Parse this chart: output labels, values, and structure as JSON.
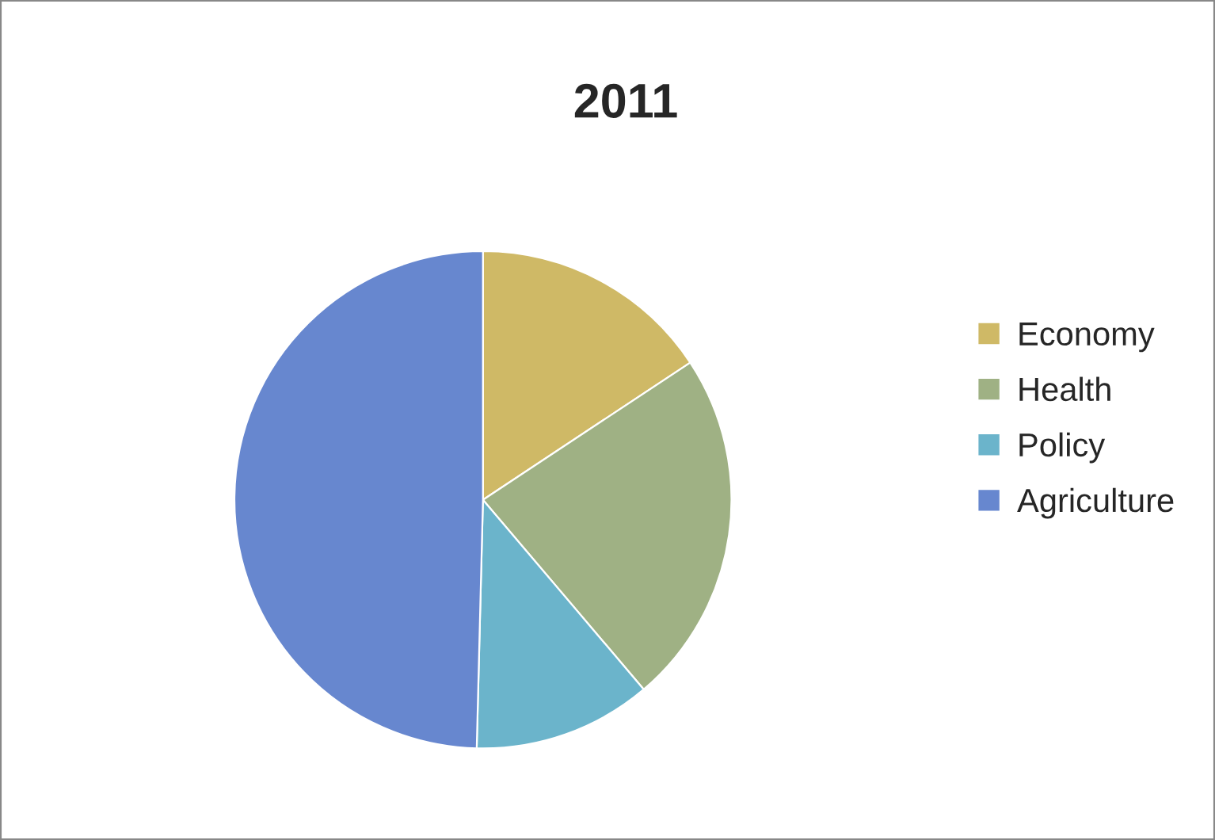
{
  "chart_data": {
    "type": "pie",
    "title": "2011",
    "categories": [
      "Economy",
      "Health",
      "Policy",
      "Agriculture"
    ],
    "values": [
      15.7,
      23.1,
      11.6,
      49.6
    ],
    "colors": [
      "#cfb966",
      "#9fb184",
      "#6bb4cb",
      "#6787cf"
    ],
    "legend": "right"
  }
}
